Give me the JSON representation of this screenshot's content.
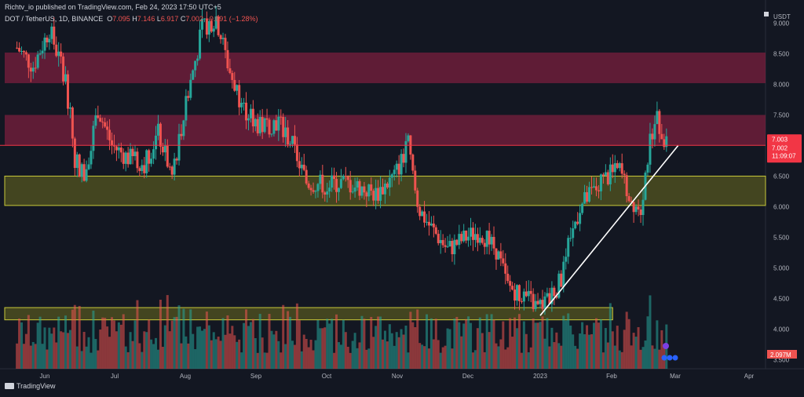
{
  "header": {
    "publish_line": "Richtv_io published on TradingView.com, Feb 24, 2023 17:50 UTC+5",
    "symbol_line": "DOT / TetherUS, 1D, BINANCE",
    "ohlc": {
      "o_label": "O",
      "o": "7.095",
      "h_label": "H",
      "h": "7.146",
      "l_label": "L",
      "l": "6.917",
      "c_label": "C",
      "c": "7.002",
      "change": "−0.091 (−1.28%)"
    }
  },
  "footer": {
    "brand": "TradingView"
  },
  "colors": {
    "background": "#131722",
    "up": "#26a69a",
    "down": "#ef5350",
    "resistance_zone": "#7a1f3d",
    "support_zone": "#6b6b1f",
    "trendline": "#ffffff",
    "last_price_line": "#f23645",
    "axis_text": "#b2b5be"
  },
  "chart_data": {
    "type": "candlestick",
    "price_axis": {
      "unit": "USDT",
      "ticks": [
        "9.000",
        "8.500",
        "8.000",
        "7.500",
        "7.000",
        "6.500",
        "6.000",
        "5.500",
        "5.000",
        "4.500",
        "4.000",
        "3.500"
      ],
      "ylim": [
        3.35,
        9.2
      ]
    },
    "time_axis": {
      "ticks": [
        "Jun",
        "Jul",
        "Aug",
        "Sep",
        "Oct",
        "Nov",
        "Dec",
        "2023",
        "Feb",
        "Mar",
        "Apr"
      ]
    },
    "last_price": {
      "value": "7.003",
      "close": "7.002",
      "countdown": "11:09:07"
    },
    "volume_label": "2.097M",
    "zones": [
      {
        "kind": "resistance",
        "y1": 8.02,
        "y2": 8.52
      },
      {
        "kind": "resistance",
        "y1": 7.0,
        "y2": 7.5
      },
      {
        "kind": "support",
        "y1": 6.02,
        "y2": 6.5
      },
      {
        "kind": "support",
        "y1": 4.15,
        "y2": 4.35,
        "end": "2023-02-01"
      }
    ],
    "trendline": {
      "from": [
        "2023-01-01",
        4.22
      ],
      "to": [
        "2023-03-01",
        7.0
      ]
    },
    "price_path": [
      [
        "2022-05-20",
        8.6
      ],
      [
        "2022-05-27",
        8.3
      ],
      [
        "2022-06-03",
        8.9
      ],
      [
        "2022-06-10",
        8.1
      ],
      [
        "2022-06-14",
        6.8
      ],
      [
        "2022-06-18",
        6.5
      ],
      [
        "2022-06-24",
        7.6
      ],
      [
        "2022-06-30",
        7.0
      ],
      [
        "2022-07-07",
        6.8
      ],
      [
        "2022-07-14",
        6.7
      ],
      [
        "2022-07-20",
        7.2
      ],
      [
        "2022-07-26",
        6.5
      ],
      [
        "2022-08-02",
        7.9
      ],
      [
        "2022-08-08",
        8.9
      ],
      [
        "2022-08-14",
        9.1
      ],
      [
        "2022-08-20",
        8.2
      ],
      [
        "2022-08-26",
        7.6
      ],
      [
        "2022-09-02",
        7.3
      ],
      [
        "2022-09-10",
        7.4
      ],
      [
        "2022-09-16",
        7.0
      ],
      [
        "2022-09-22",
        6.4
      ],
      [
        "2022-09-30",
        6.35
      ],
      [
        "2022-10-08",
        6.4
      ],
      [
        "2022-10-16",
        6.3
      ],
      [
        "2022-10-22",
        6.2
      ],
      [
        "2022-10-30",
        6.5
      ],
      [
        "2022-11-05",
        7.0
      ],
      [
        "2022-11-09",
        6.0
      ],
      [
        "2022-11-14",
        5.7
      ],
      [
        "2022-11-22",
        5.3
      ],
      [
        "2022-11-30",
        5.5
      ],
      [
        "2022-12-06",
        5.6
      ],
      [
        "2022-12-13",
        5.3
      ],
      [
        "2022-12-18",
        4.7
      ],
      [
        "2022-12-25",
        4.55
      ],
      [
        "2022-12-31",
        4.35
      ],
      [
        "2023-01-05",
        4.5
      ],
      [
        "2023-01-10",
        4.8
      ],
      [
        "2023-01-14",
        5.5
      ],
      [
        "2023-01-18",
        6.0
      ],
      [
        "2023-01-25",
        6.3
      ],
      [
        "2023-01-30",
        6.5
      ],
      [
        "2023-02-04",
        6.6
      ],
      [
        "2023-02-09",
        6.1
      ],
      [
        "2023-02-13",
        6.0
      ],
      [
        "2023-02-16",
        6.8
      ],
      [
        "2023-02-19",
        7.5
      ],
      [
        "2023-02-23",
        7.1
      ],
      [
        "2023-02-24",
        7.0
      ]
    ]
  }
}
